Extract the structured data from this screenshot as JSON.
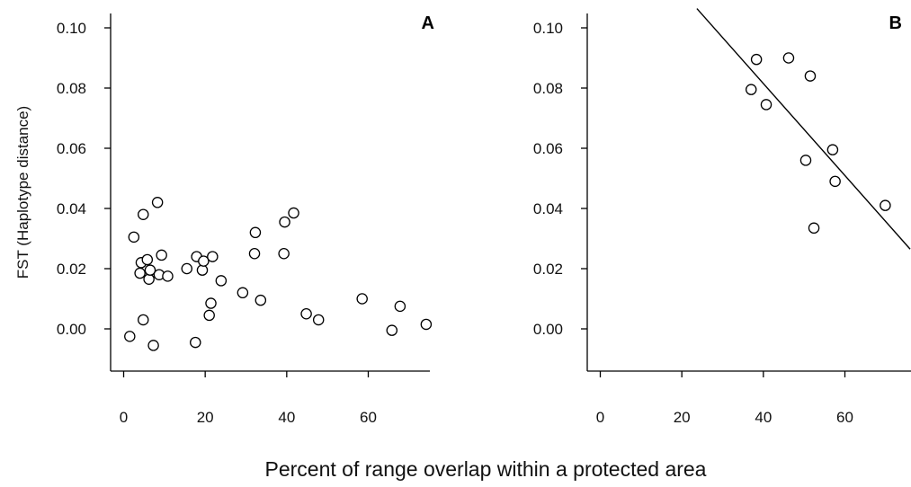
{
  "xlabel": "Percent of range overlap within a protected area",
  "ylabel": "FST (Haplotype distance)",
  "chart_data": [
    {
      "type": "scatter",
      "panel": "A",
      "x_ticks": [
        0,
        20,
        40,
        60
      ],
      "y_ticks": [
        "0.00",
        "0.02",
        "0.04",
        "0.06",
        "0.08",
        "0.10"
      ],
      "xlim": [
        -3,
        76
      ],
      "ylim": [
        -0.0145,
        0.104
      ],
      "grid": false,
      "points": [
        {
          "x": 1.5,
          "y": -0.0025
        },
        {
          "x": 2.5,
          "y": 0.0305
        },
        {
          "x": 4.0,
          "y": 0.0185
        },
        {
          "x": 4.3,
          "y": 0.022
        },
        {
          "x": 4.8,
          "y": 0.038
        },
        {
          "x": 4.8,
          "y": 0.003
        },
        {
          "x": 5.8,
          "y": 0.023
        },
        {
          "x": 6.2,
          "y": 0.0165
        },
        {
          "x": 6.5,
          "y": 0.0195
        },
        {
          "x": 7.3,
          "y": -0.0055
        },
        {
          "x": 8.3,
          "y": 0.042
        },
        {
          "x": 8.7,
          "y": 0.018
        },
        {
          "x": 9.3,
          "y": 0.0245
        },
        {
          "x": 10.8,
          "y": 0.0175
        },
        {
          "x": 15.5,
          "y": 0.02
        },
        {
          "x": 17.6,
          "y": -0.0045
        },
        {
          "x": 17.9,
          "y": 0.024
        },
        {
          "x": 19.3,
          "y": 0.0195
        },
        {
          "x": 19.6,
          "y": 0.0225
        },
        {
          "x": 21.0,
          "y": 0.0045
        },
        {
          "x": 21.4,
          "y": 0.0085
        },
        {
          "x": 21.8,
          "y": 0.024
        },
        {
          "x": 23.9,
          "y": 0.016
        },
        {
          "x": 29.2,
          "y": 0.012
        },
        {
          "x": 32.1,
          "y": 0.025
        },
        {
          "x": 32.3,
          "y": 0.032
        },
        {
          "x": 33.6,
          "y": 0.0095
        },
        {
          "x": 39.3,
          "y": 0.025
        },
        {
          "x": 39.5,
          "y": 0.0355
        },
        {
          "x": 41.7,
          "y": 0.0385
        },
        {
          "x": 44.8,
          "y": 0.005
        },
        {
          "x": 47.8,
          "y": 0.003
        },
        {
          "x": 58.5,
          "y": 0.01
        },
        {
          "x": 65.8,
          "y": -0.0005
        },
        {
          "x": 67.8,
          "y": 0.0075
        },
        {
          "x": 74.2,
          "y": 0.0015
        }
      ]
    },
    {
      "type": "scatter",
      "panel": "B",
      "x_ticks": [
        0,
        20,
        40,
        60
      ],
      "y_ticks": [
        "0.00",
        "0.02",
        "0.04",
        "0.06",
        "0.08",
        "0.10"
      ],
      "xlim": [
        -3,
        76
      ],
      "ylim": [
        -0.0145,
        0.104
      ],
      "grid": false,
      "points": [
        {
          "x": 37.0,
          "y": 0.0795
        },
        {
          "x": 38.3,
          "y": 0.0895
        },
        {
          "x": 40.7,
          "y": 0.0745
        },
        {
          "x": 46.2,
          "y": 0.09
        },
        {
          "x": 50.4,
          "y": 0.056
        },
        {
          "x": 51.5,
          "y": 0.084
        },
        {
          "x": 52.4,
          "y": 0.0335
        },
        {
          "x": 57.0,
          "y": 0.0595
        },
        {
          "x": 57.6,
          "y": 0.049
        },
        {
          "x": 69.9,
          "y": 0.041
        }
      ],
      "fit_line": {
        "x": [
          23.7,
          76.0
        ],
        "y": 0.1064,
        "y2": 0.0265
      }
    }
  ]
}
